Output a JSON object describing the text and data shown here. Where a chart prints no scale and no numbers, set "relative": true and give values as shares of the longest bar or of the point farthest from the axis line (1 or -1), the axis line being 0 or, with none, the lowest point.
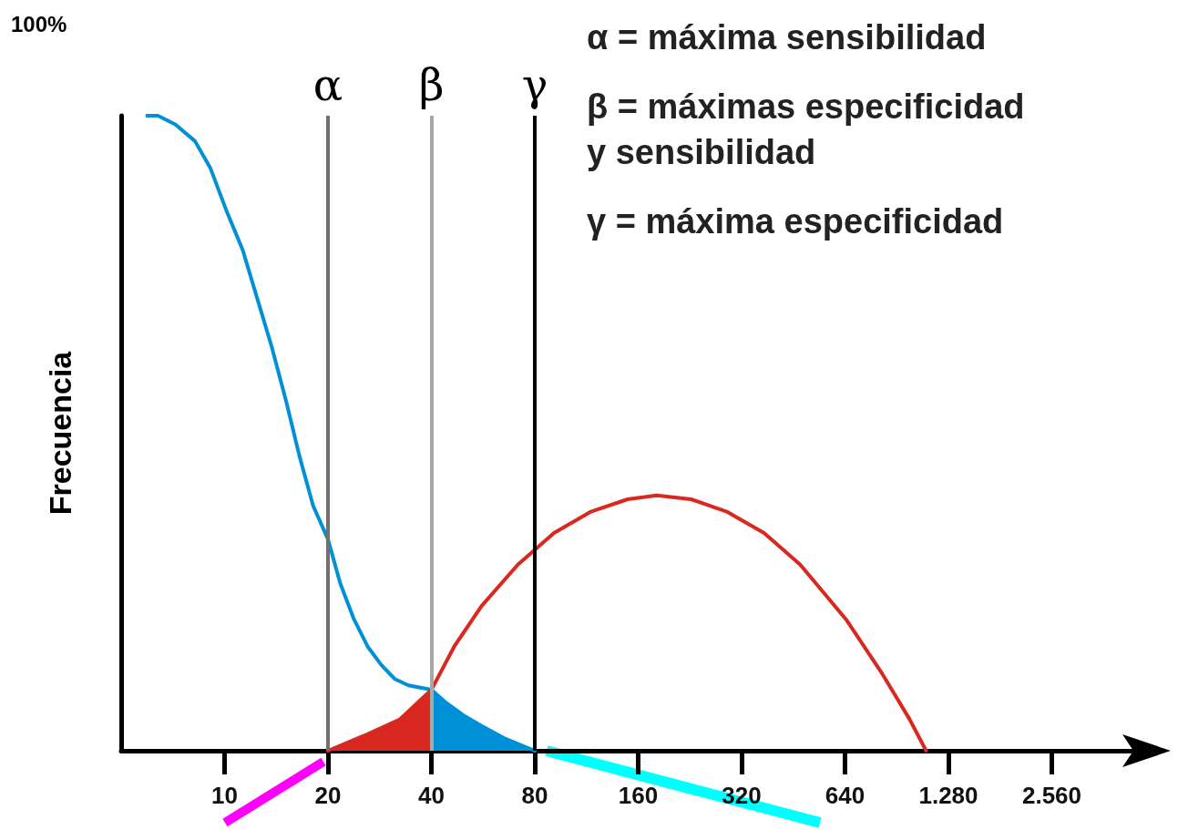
{
  "chart_data": {
    "type": "line",
    "relative": true,
    "ylabel": "Frecuencia",
    "log": "x",
    "marker": "none",
    "line_style": "solid",
    "grid": false,
    "xlim": [
      5,
      5120
    ],
    "xticks": [
      10,
      20,
      40,
      80,
      160,
      320,
      640,
      {
        "value": 1280,
        "label": "1.280"
      },
      {
        "value": 2560,
        "label": "2.560"
      }
    ],
    "series": [
      {
        "type": "area",
        "color": "#d92820",
        "x": [
          20,
          25.3,
          32.3,
          40
        ],
        "values": [
          0,
          0.023,
          0.049,
          0.096
        ]
      },
      {
        "type": "area",
        "color": "#0090d8",
        "x": [
          40,
          43.8,
          49.5,
          56,
          65,
          80
        ],
        "values": [
          0.096,
          0.077,
          0.056,
          0.039,
          0.02,
          0
        ]
      },
      {
        "color": "#0090d8",
        "x": [
          5.95,
          6.4,
          7.2,
          8.2,
          9.1,
          10.1,
          11.3,
          12.5,
          13.7,
          15.1,
          16.5,
          18.1,
          20,
          21.7,
          23.8,
          26.1,
          28.6,
          31.3,
          34.3,
          40,
          43.8,
          49.5,
          56,
          65,
          80
        ],
        "values": [
          1,
          1,
          0.986,
          0.96,
          0.917,
          0.852,
          0.788,
          0.709,
          0.637,
          0.551,
          0.465,
          0.386,
          0.333,
          0.264,
          0.207,
          0.164,
          0.135,
          0.113,
          0.103,
          0.096,
          0.077,
          0.056,
          0.039,
          0.02,
          0
        ]
      },
      {
        "color": "#d92820",
        "x": [
          20,
          25.3,
          32.3,
          40,
          46.6,
          56,
          71.4,
          91,
          116,
          149,
          181,
          228,
          291,
          372,
          474,
          644,
          822,
          988,
          1102
        ],
        "values": [
          0,
          0.023,
          0.049,
          0.096,
          0.164,
          0.228,
          0.293,
          0.343,
          0.376,
          0.396,
          0.402,
          0.396,
          0.376,
          0.343,
          0.293,
          0.207,
          0.121,
          0.049,
          0
        ]
      }
    ],
    "ref_lines": [
      {
        "axis": "x",
        "value": 20,
        "label": "α",
        "color": "#707070"
      },
      {
        "axis": "x",
        "value": 40,
        "label": "β",
        "color": "#a8a8a8"
      },
      {
        "axis": "x",
        "value": 80,
        "label": "γ",
        "color": "#000000"
      }
    ],
    "annotations": [
      "100%",
      "α = máxima sensibilidad",
      "β = máximas especificidad\ny sensibilidad",
      "γ = máxima especificidad"
    ]
  }
}
